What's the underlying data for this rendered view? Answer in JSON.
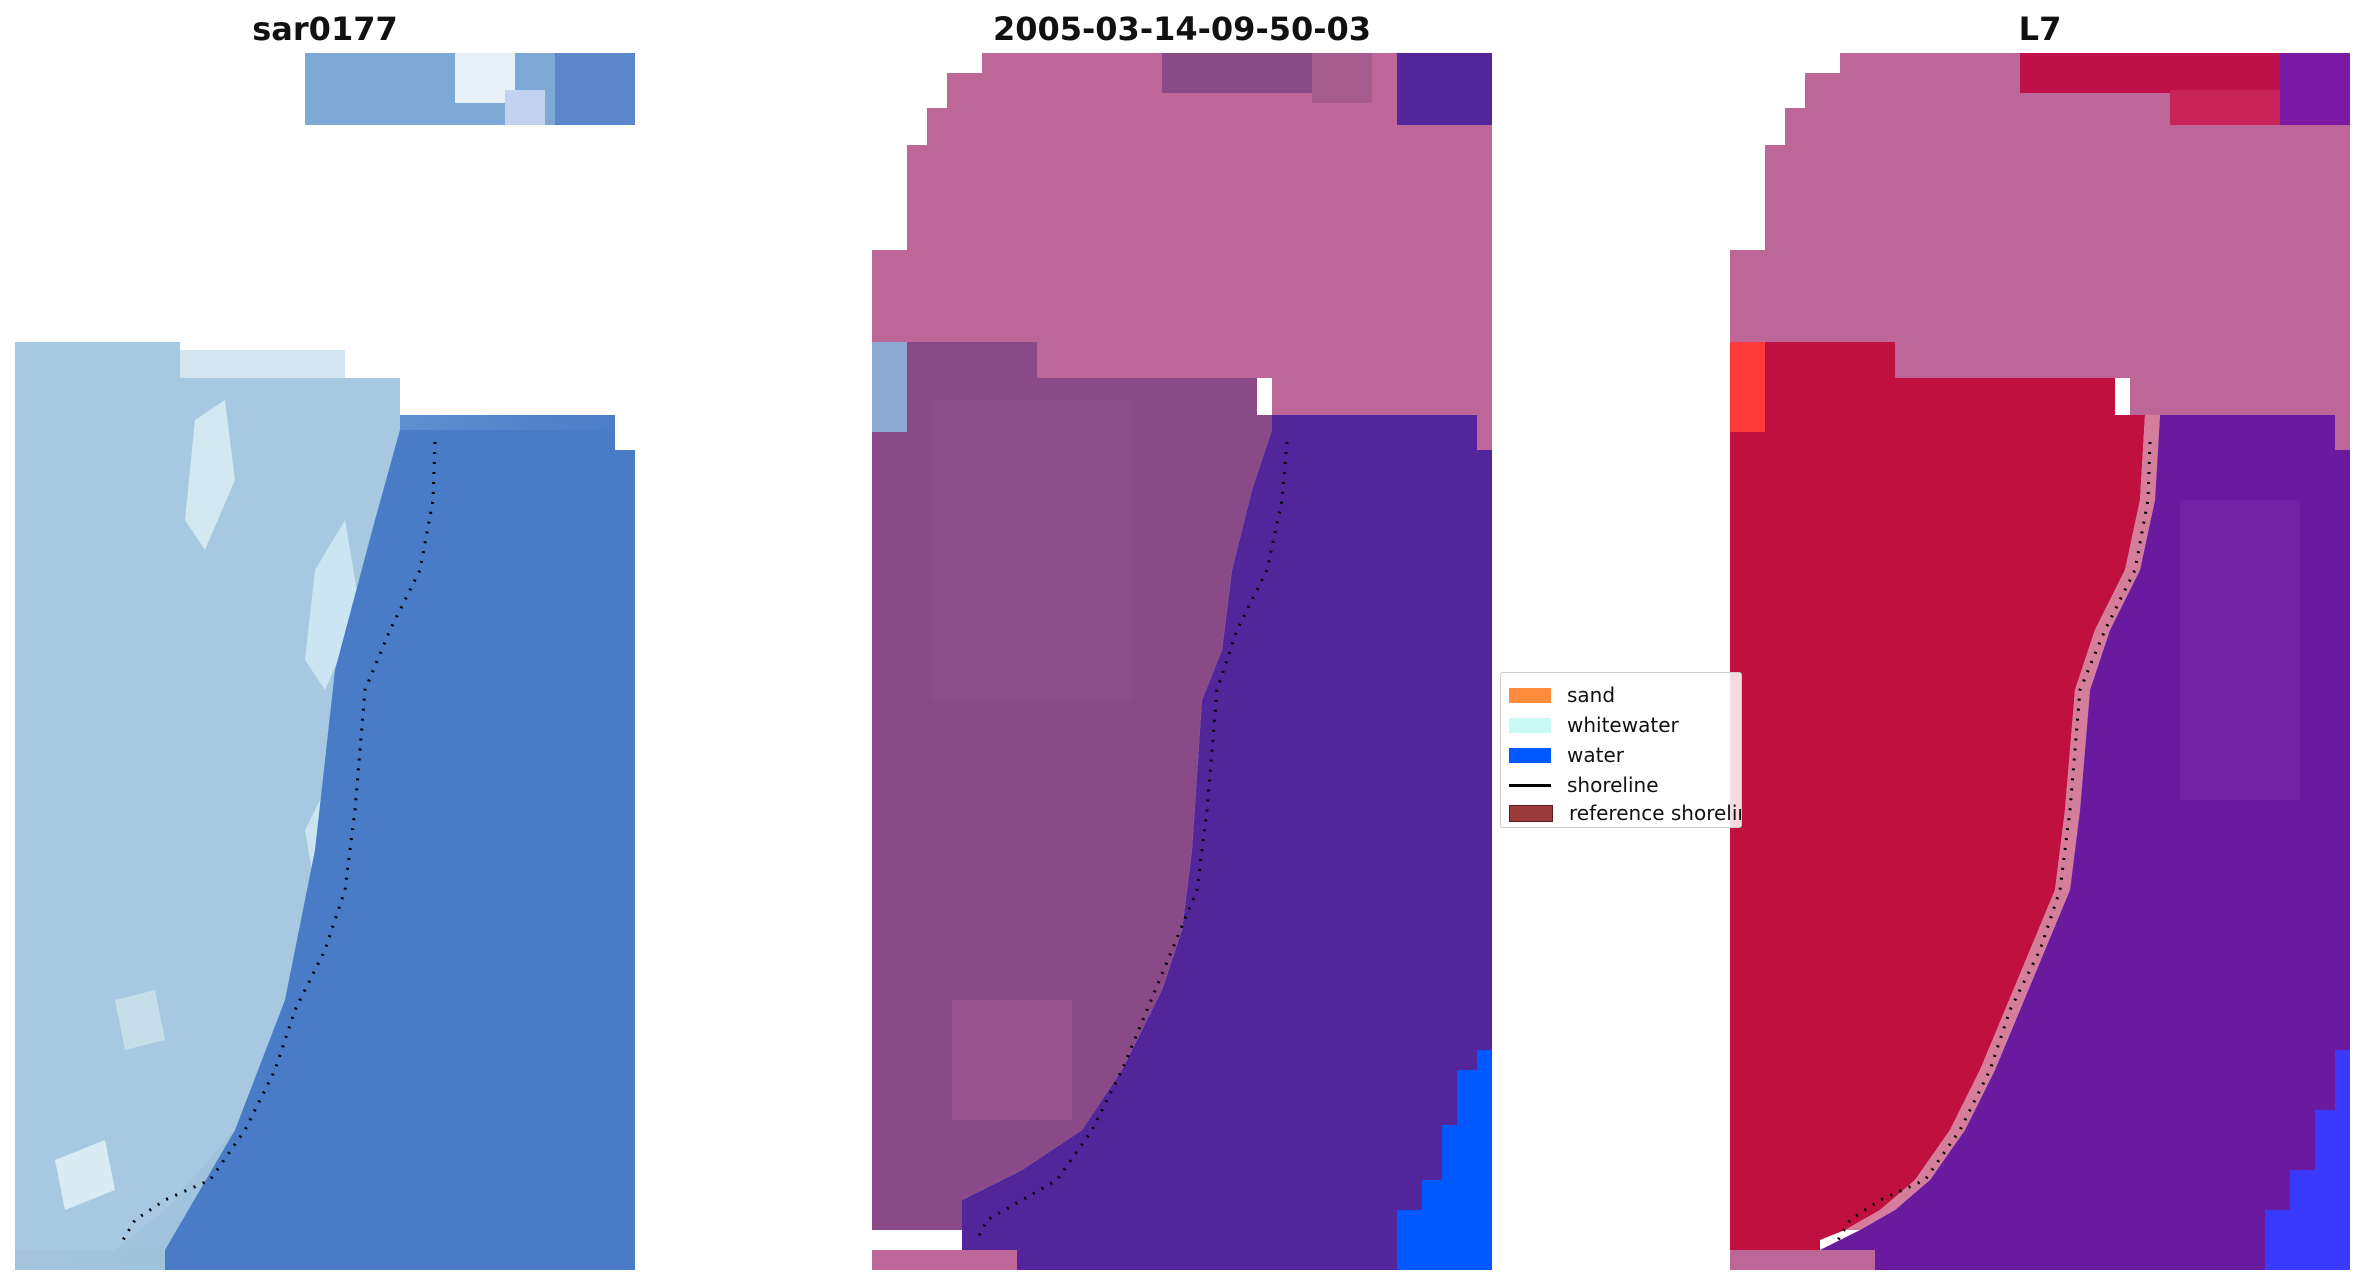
{
  "titles": {
    "left": "sar0177",
    "middle": "2005-03-14-09-50-03",
    "right": "L7"
  },
  "legend": {
    "sand": "sand",
    "whitewater": "whitewater",
    "water": "water",
    "shoreline": "shoreline",
    "reference_shoreline": "reference shoreline"
  },
  "colors": {
    "sand": "#ff8c3a",
    "whitewater": "#c9fbf4",
    "water": "#0058ff",
    "shoreline": "#000000",
    "reference_shoreline": "#9c3b3b",
    "rgb_land": "#9ec0dc",
    "rgb_sea": "#4a7bc6",
    "mask": "#bd6698",
    "class_land": "#8a4a88",
    "class_sea": "#52269a",
    "ndwi_land": "#c01040",
    "ndwi_sea": "#6a1a9e"
  },
  "icons": {
    "shoreline_line": "solid-line",
    "shoreline_dots": "dotted-line"
  }
}
